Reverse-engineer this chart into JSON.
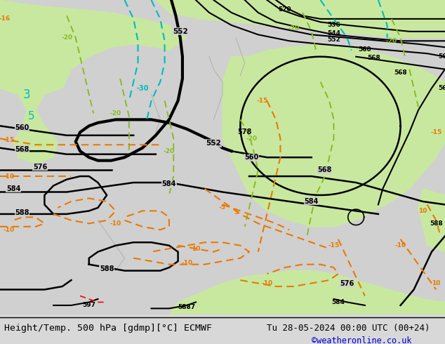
{
  "title_left": "Height/Temp. 500 hPa [gdmp][°C] ECMWF",
  "title_right": "Tu 28-05-2024 00:00 UTC (00+24)",
  "credit": "©weatheronline.co.uk",
  "bg_color": "#d8d8d8",
  "figsize": [
    6.34,
    4.9
  ],
  "dpi": 100,
  "title_fontsize": 9.5,
  "credit_fontsize": 8.5,
  "credit_color": "#0000cc",
  "green_color": "#c8e8a0",
  "gray_color": "#c8c8c8"
}
